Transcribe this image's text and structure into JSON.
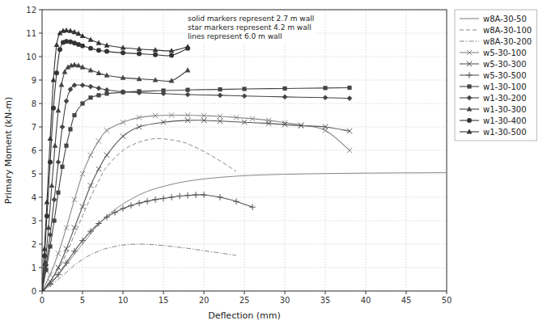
{
  "chart_data": {
    "type": "line",
    "x_label": "Deflection (mm)",
    "y_label": "Primary Moment (kN-m)",
    "xlim": [
      0,
      50
    ],
    "ylim": [
      0,
      12
    ],
    "xticks": [
      0,
      5,
      10,
      15,
      20,
      25,
      30,
      35,
      40,
      45,
      50
    ],
    "yticks": [
      0,
      1,
      2,
      3,
      4,
      5,
      6,
      7,
      8,
      9,
      10,
      11,
      12
    ],
    "grid": true,
    "legend": "right",
    "annotations": [
      "solid markers represent 2.7 m wall",
      "star markers represent 4.2 m wall",
      "lines represent 6.0 m wall"
    ],
    "series": [
      {
        "name": "w8A-30-50",
        "color": "#888888",
        "line_style": "solid",
        "x": [
          0,
          2,
          5,
          8,
          12,
          16,
          20,
          25,
          30,
          35,
          40,
          45,
          50
        ],
        "values": [
          0,
          0.7,
          2.0,
          3.2,
          4.1,
          4.55,
          4.78,
          4.92,
          4.98,
          5.01,
          5.03,
          5.04,
          5.05
        ]
      },
      {
        "name": "w8A-30-100",
        "color": "#888888",
        "line_style": "dashed",
        "x": [
          0,
          1,
          2,
          3,
          4,
          5,
          6,
          7,
          8,
          10,
          12,
          14,
          16,
          17,
          18,
          20,
          22,
          24
        ],
        "values": [
          0,
          0.4,
          0.9,
          1.6,
          2.4,
          3.2,
          4.0,
          4.7,
          5.3,
          6.0,
          6.35,
          6.5,
          6.45,
          6.38,
          6.28,
          5.95,
          5.55,
          5.1
        ]
      },
      {
        "name": "w8A-30-200",
        "color": "#888888",
        "line_style": "dashdot",
        "x": [
          0,
          1,
          2,
          3,
          4,
          5,
          6,
          7,
          8,
          10,
          12,
          14,
          16,
          18,
          20,
          22,
          24
        ],
        "values": [
          0,
          0.2,
          0.5,
          0.8,
          1.1,
          1.35,
          1.55,
          1.7,
          1.82,
          1.96,
          2.0,
          1.97,
          1.9,
          1.82,
          1.72,
          1.62,
          1.52
        ]
      },
      {
        "name": "w5-30-100",
        "color": "#888888",
        "line_style": "solid",
        "marker": "x",
        "x": [
          0,
          1,
          2,
          3,
          4,
          5,
          6,
          7,
          8,
          10,
          12,
          14,
          16,
          18,
          20,
          22,
          24,
          26,
          28,
          30,
          32,
          35,
          38
        ],
        "values": [
          0,
          0.7,
          1.6,
          2.7,
          3.9,
          5.0,
          5.8,
          6.4,
          6.85,
          7.2,
          7.4,
          7.48,
          7.5,
          7.5,
          7.48,
          7.45,
          7.4,
          7.35,
          7.28,
          7.18,
          7.08,
          6.85,
          6.0
        ]
      },
      {
        "name": "w5-30-300",
        "color": "#555555",
        "line_style": "solid",
        "marker": "x",
        "x": [
          0,
          1,
          2,
          3,
          4,
          5,
          6,
          7,
          8,
          10,
          12,
          15,
          18,
          20,
          22,
          25,
          28,
          30,
          32,
          35,
          38
        ],
        "values": [
          0,
          0.4,
          1.0,
          1.8,
          2.7,
          3.6,
          4.5,
          5.2,
          5.8,
          6.6,
          7.0,
          7.2,
          7.28,
          7.28,
          7.25,
          7.2,
          7.15,
          7.1,
          7.05,
          7.0,
          6.82
        ]
      },
      {
        "name": "w5-30-500",
        "color": "#555555",
        "line_style": "solid",
        "marker": "plus",
        "x": [
          0,
          1,
          2,
          3,
          4,
          5,
          6,
          7,
          8,
          9,
          10,
          11,
          12,
          13,
          14,
          15,
          16,
          17,
          18,
          19,
          20,
          22,
          24,
          26
        ],
        "values": [
          0,
          0.3,
          0.7,
          1.2,
          1.7,
          2.15,
          2.55,
          2.88,
          3.15,
          3.35,
          3.52,
          3.65,
          3.75,
          3.83,
          3.9,
          3.95,
          4.0,
          4.05,
          4.08,
          4.1,
          4.1,
          4.0,
          3.82,
          3.58
        ]
      },
      {
        "name": "w1-30-100",
        "color": "#444444",
        "line_style": "solid",
        "marker": "square",
        "x": [
          0,
          0.5,
          1,
          1.5,
          2,
          2.5,
          3,
          3.5,
          4,
          5,
          6,
          7,
          8,
          10,
          12,
          15,
          18,
          22,
          25,
          30,
          35,
          38
        ],
        "values": [
          0,
          0.9,
          1.9,
          3.0,
          4.2,
          5.3,
          6.2,
          6.9,
          7.5,
          8.0,
          8.25,
          8.35,
          8.42,
          8.48,
          8.52,
          8.55,
          8.58,
          8.6,
          8.62,
          8.64,
          8.66,
          8.67
        ]
      },
      {
        "name": "w1-30-200",
        "color": "#444444",
        "line_style": "solid",
        "marker": "diamond",
        "x": [
          0,
          0.5,
          1,
          1.5,
          2,
          2.5,
          3,
          3.5,
          4,
          5,
          6,
          7,
          8,
          10,
          12,
          15,
          18,
          22,
          25,
          30,
          35,
          38
        ],
        "values": [
          0,
          1.1,
          2.4,
          3.9,
          5.5,
          7.0,
          8.1,
          8.6,
          8.78,
          8.78,
          8.72,
          8.65,
          8.58,
          8.5,
          8.46,
          8.42,
          8.38,
          8.35,
          8.32,
          8.28,
          8.25,
          8.22
        ]
      },
      {
        "name": "w1-30-300",
        "color": "#444444",
        "line_style": "solid",
        "marker": "triangle",
        "x": [
          0,
          0.4,
          0.8,
          1.2,
          1.6,
          2,
          2.4,
          2.8,
          3.2,
          3.6,
          4,
          4.5,
          5,
          6,
          7,
          8,
          10,
          12,
          14,
          16,
          18
        ],
        "values": [
          0,
          1.2,
          2.7,
          4.5,
          6.2,
          7.7,
          8.8,
          9.35,
          9.55,
          9.62,
          9.65,
          9.62,
          9.55,
          9.42,
          9.3,
          9.2,
          9.1,
          9.05,
          9.0,
          8.97,
          9.42
        ]
      },
      {
        "name": "w1-30-400",
        "color": "#333333",
        "line_style": "solid",
        "marker": "circle",
        "x": [
          0,
          0.3,
          0.6,
          1,
          1.4,
          1.8,
          2.2,
          2.6,
          3.0,
          3.5,
          4,
          4.5,
          5,
          6,
          7,
          8,
          10,
          12,
          14,
          16,
          18
        ],
        "values": [
          0,
          1.5,
          3.2,
          5.5,
          7.8,
          9.3,
          10.3,
          10.6,
          10.65,
          10.63,
          10.58,
          10.52,
          10.46,
          10.35,
          10.27,
          10.22,
          10.16,
          10.12,
          10.08,
          10.05,
          10.35
        ]
      },
      {
        "name": "w1-30-500",
        "color": "#333333",
        "line_style": "solid",
        "marker": "triangle",
        "x": [
          0,
          0.3,
          0.6,
          1,
          1.4,
          1.8,
          2.2,
          2.6,
          3.0,
          3.5,
          4,
          4.5,
          5,
          6,
          7,
          8,
          10,
          12,
          14,
          16,
          18
        ],
        "values": [
          0,
          1.8,
          3.8,
          6.5,
          9.0,
          10.5,
          11.0,
          11.1,
          11.12,
          11.1,
          11.05,
          10.98,
          10.88,
          10.72,
          10.58,
          10.48,
          10.38,
          10.32,
          10.28,
          10.25,
          10.42
        ]
      }
    ]
  }
}
